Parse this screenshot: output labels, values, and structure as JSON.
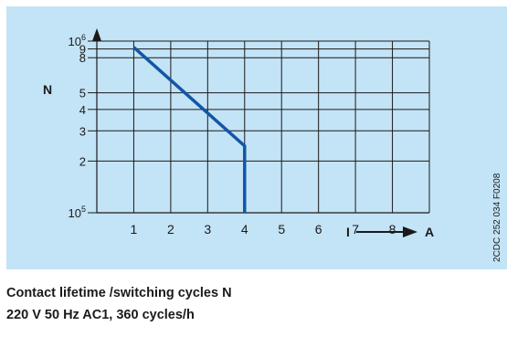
{
  "chart_data": {
    "type": "line",
    "y_scale": "log",
    "xlabel": "I",
    "x_unit": "A",
    "ylabel": "N",
    "x_ticks": [
      1,
      2,
      3,
      4,
      5,
      6,
      7,
      8
    ],
    "y_ticks": [
      {
        "value": 100000,
        "base": "10",
        "exp": "5"
      },
      {
        "value": 200000,
        "base": "2",
        "exp": ""
      },
      {
        "value": 300000,
        "base": "3",
        "exp": ""
      },
      {
        "value": 400000,
        "base": "4",
        "exp": ""
      },
      {
        "value": 500000,
        "base": "5",
        "exp": ""
      },
      {
        "value": 800000,
        "base": "8",
        "exp": ""
      },
      {
        "value": 900000,
        "base": "9",
        "exp": ""
      },
      {
        "value": 1000000,
        "base": "10",
        "exp": "6"
      }
    ],
    "xlim": [
      0,
      9
    ],
    "ylim": [
      100000,
      1000000
    ],
    "grid": true,
    "series": [
      {
        "name": "",
        "x": [
          1,
          4,
          4
        ],
        "y": [
          920000,
          245000,
          100000
        ]
      }
    ],
    "side_label": "2CDC 252 034 F0208",
    "colors": {
      "background": "#c3e3f6",
      "line": "#1257a6",
      "grid": "#1a1a1a"
    }
  },
  "caption": {
    "line1": "Contact lifetime /switching cycles N",
    "line2": "220 V 50 Hz AC1, 360 cycles/h"
  }
}
